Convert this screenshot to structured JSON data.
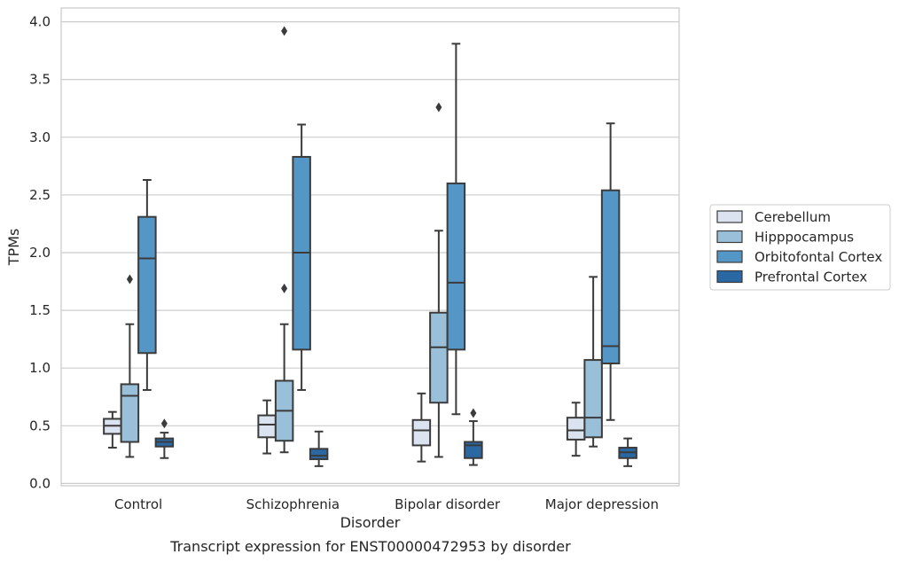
{
  "chart_data": {
    "type": "box",
    "caption": "Transcript expression for ENST00000472953 by disorder",
    "xlabel": "Disorder",
    "ylabel": "TPMs",
    "ylim": [
      -0.02,
      4.12
    ],
    "yticks": [
      0.0,
      0.5,
      1.0,
      1.5,
      2.0,
      2.5,
      3.0,
      3.5,
      4.0
    ],
    "ytick_labels": [
      "0.0",
      "0.5",
      "1.0",
      "1.5",
      "2.0",
      "2.5",
      "3.0",
      "3.5",
      "4.0"
    ],
    "grid": "horizontal",
    "legend_position": "right",
    "categories": [
      "Control",
      "Schizophrenia",
      "Bipolar disorder",
      "Major depression"
    ],
    "series": [
      {
        "name": "Cerebellum",
        "color": "#dbe3f0",
        "boxes": [
          {
            "min": 0.31,
            "q1": 0.43,
            "median": 0.5,
            "q3": 0.56,
            "max": 0.62,
            "outliers": []
          },
          {
            "min": 0.26,
            "q1": 0.4,
            "median": 0.51,
            "q3": 0.59,
            "max": 0.72,
            "outliers": []
          },
          {
            "min": 0.19,
            "q1": 0.33,
            "median": 0.46,
            "q3": 0.55,
            "max": 0.78,
            "outliers": []
          },
          {
            "min": 0.24,
            "q1": 0.38,
            "median": 0.46,
            "q3": 0.57,
            "max": 0.7,
            "outliers": []
          }
        ]
      },
      {
        "name": "Hipppocampus",
        "color": "#9ac0d9",
        "boxes": [
          {
            "min": 0.23,
            "q1": 0.36,
            "median": 0.76,
            "q3": 0.86,
            "max": 1.38,
            "outliers": [
              1.77
            ]
          },
          {
            "min": 0.27,
            "q1": 0.37,
            "median": 0.63,
            "q3": 0.89,
            "max": 1.38,
            "outliers": [
              1.69,
              3.92
            ]
          },
          {
            "min": 0.23,
            "q1": 0.7,
            "median": 1.18,
            "q3": 1.48,
            "max": 2.19,
            "outliers": [
              3.26
            ]
          },
          {
            "min": 0.32,
            "q1": 0.4,
            "median": 0.57,
            "q3": 1.07,
            "max": 1.79,
            "outliers": []
          }
        ]
      },
      {
        "name": "Orbitofontal Cortex",
        "color": "#5497c7",
        "boxes": [
          {
            "min": 0.81,
            "q1": 1.13,
            "median": 1.95,
            "q3": 2.31,
            "max": 2.63,
            "outliers": []
          },
          {
            "min": 0.81,
            "q1": 1.16,
            "median": 2.0,
            "q3": 2.83,
            "max": 3.11,
            "outliers": []
          },
          {
            "min": 0.6,
            "q1": 1.16,
            "median": 1.74,
            "q3": 2.6,
            "max": 3.81,
            "outliers": []
          },
          {
            "min": 0.55,
            "q1": 1.04,
            "median": 1.19,
            "q3": 2.54,
            "max": 3.12,
            "outliers": []
          }
        ]
      },
      {
        "name": "Prefrontal Cortex",
        "color": "#2a68a4",
        "boxes": [
          {
            "min": 0.22,
            "q1": 0.32,
            "median": 0.36,
            "q3": 0.39,
            "max": 0.44,
            "outliers": [
              0.52
            ]
          },
          {
            "min": 0.15,
            "q1": 0.21,
            "median": 0.24,
            "q3": 0.3,
            "max": 0.45,
            "outliers": []
          },
          {
            "min": 0.16,
            "q1": 0.22,
            "median": 0.33,
            "q3": 0.36,
            "max": 0.54,
            "outliers": [
              0.61
            ]
          },
          {
            "min": 0.15,
            "q1": 0.22,
            "median": 0.27,
            "q3": 0.31,
            "max": 0.39,
            "outliers": []
          }
        ]
      }
    ]
  }
}
